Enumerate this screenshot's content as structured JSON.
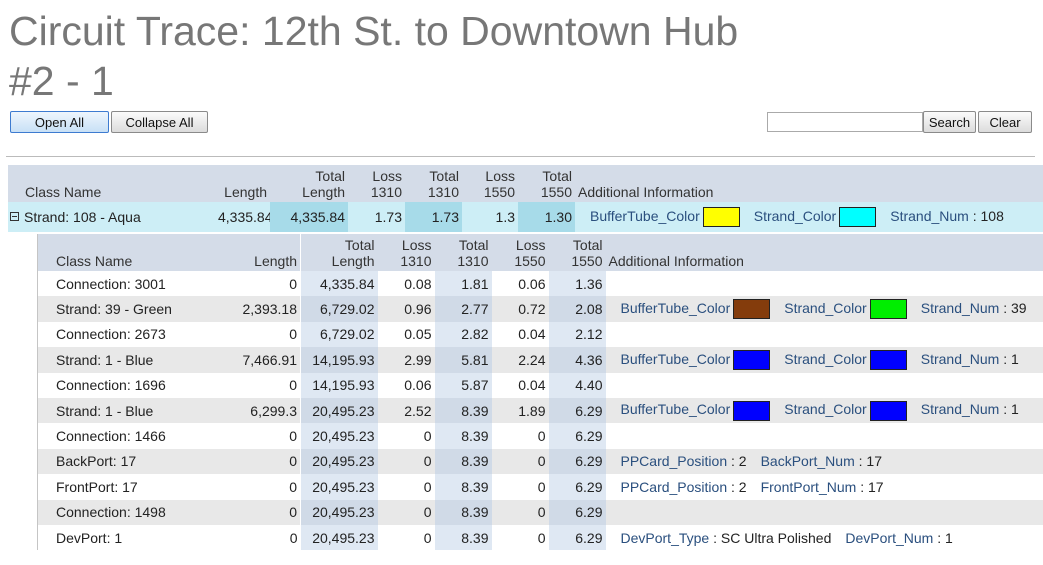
{
  "title": "Circuit Trace: 12th St. to Downtown Hub #2 - 1",
  "toolbar": {
    "open_all": "Open All",
    "collapse_all": "Collapse All",
    "search": "Search",
    "clear": "Clear"
  },
  "outer": {
    "headers": [
      "Class Name",
      "Length",
      "Total Length",
      "Loss 1310",
      "Total 1310",
      "Loss 1550",
      "Total 1550",
      "Additional Information"
    ],
    "row": {
      "cells": [
        "Strand: 108 - Aqua",
        "4,335.84",
        "4,335.84",
        "1.73",
        "1.73",
        "1.3",
        "1.30"
      ],
      "info": [
        {
          "name": "BufferTube_Color",
          "color": "#ffff00"
        },
        {
          "name": "Strand_Color",
          "color": "#00ffff"
        },
        {
          "name": "Strand_Num",
          "value": ": 108"
        }
      ]
    }
  },
  "inner": {
    "headers": [
      "Class Name",
      "Length",
      "Total Length",
      "Loss 1310",
      "Total 1310",
      "Loss 1550",
      "Total 1550",
      "Additional Information"
    ],
    "rows": [
      {
        "cells": [
          "Connection: 3001",
          "0",
          "4,335.84",
          "0.08",
          "1.81",
          "0.06",
          "1.36"
        ],
        "info": []
      },
      {
        "cells": [
          "Strand: 39 - Green",
          "2,393.18",
          "6,729.02",
          "0.96",
          "2.77",
          "0.72",
          "2.08"
        ],
        "info": [
          {
            "name": "BufferTube_Color",
            "color": "#843c0c"
          },
          {
            "name": "Strand_Color",
            "color": "#00ee00"
          },
          {
            "name": "Strand_Num",
            "value": ": 39"
          }
        ]
      },
      {
        "cells": [
          "Connection: 2673",
          "0",
          "6,729.02",
          "0.05",
          "2.82",
          "0.04",
          "2.12"
        ],
        "info": []
      },
      {
        "cells": [
          "Strand: 1 - Blue",
          "7,466.91",
          "14,195.93",
          "2.99",
          "5.81",
          "2.24",
          "4.36"
        ],
        "info": [
          {
            "name": "BufferTube_Color",
            "color": "#0000ff"
          },
          {
            "name": "Strand_Color",
            "color": "#0000ff"
          },
          {
            "name": "Strand_Num",
            "value": ": 1"
          }
        ]
      },
      {
        "cells": [
          "Connection: 1696",
          "0",
          "14,195.93",
          "0.06",
          "5.87",
          "0.04",
          "4.40"
        ],
        "info": []
      },
      {
        "cells": [
          "Strand: 1 - Blue",
          "6,299.3",
          "20,495.23",
          "2.52",
          "8.39",
          "1.89",
          "6.29"
        ],
        "info": [
          {
            "name": "BufferTube_Color",
            "color": "#0000ff"
          },
          {
            "name": "Strand_Color",
            "color": "#0000ff"
          },
          {
            "name": "Strand_Num",
            "value": ": 1"
          }
        ]
      },
      {
        "cells": [
          "Connection: 1466",
          "0",
          "20,495.23",
          "0",
          "8.39",
          "0",
          "6.29"
        ],
        "info": []
      },
      {
        "cells": [
          "BackPort: 17",
          "0",
          "20,495.23",
          "0",
          "8.39",
          "0",
          "6.29"
        ],
        "info": [
          {
            "name": "PPCard_Position",
            "value": ": 2"
          },
          {
            "name": "BackPort_Num",
            "value": ": 17"
          }
        ]
      },
      {
        "cells": [
          "FrontPort: 17",
          "0",
          "20,495.23",
          "0",
          "8.39",
          "0",
          "6.29"
        ],
        "info": [
          {
            "name": "PPCard_Position",
            "value": ": 2"
          },
          {
            "name": "FrontPort_Num",
            "value": ": 17"
          }
        ]
      },
      {
        "cells": [
          "Connection: 1498",
          "0",
          "20,495.23",
          "0",
          "8.39",
          "0",
          "6.29"
        ],
        "info": []
      },
      {
        "cells": [
          "DevPort: 1",
          "0",
          "20,495.23",
          "0",
          "8.39",
          "0",
          "6.29"
        ],
        "info": [
          {
            "name": "DevPort_Type",
            "value": ": SC Ultra Polished"
          },
          {
            "name": "DevPort_Num",
            "value": ": 1"
          }
        ]
      }
    ]
  }
}
